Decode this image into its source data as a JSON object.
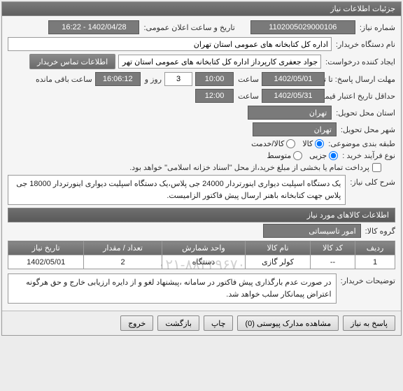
{
  "panel": {
    "title": "جزئیات اطلاعات نیاز"
  },
  "fields": {
    "need_no_label": "شماره نیاز:",
    "need_no": "1102005029000106",
    "announce_label": "تاریخ و ساعت اعلان عمومی:",
    "announce_value": "1402/04/28 - 16:22",
    "buyer_org_label": "نام دستگاه خریدار:",
    "buyer_org": "اداره کل کتابخانه های عمومی استان تهران",
    "creator_label": "ایجاد کننده درخواست:",
    "creator": "جواد جعفری کارپرداز اداره کل کتابخانه های عمومی استان تهران",
    "contact_btn": "اطلاعات تماس خریدار",
    "deadline_label": "مهلت ارسال پاسخ: تا تاریخ:",
    "deadline_date": "1402/05/01",
    "deadline_time_label": "ساعت",
    "deadline_time": "10:00",
    "remaining_prefix": "",
    "remaining_days": "3",
    "remaining_days_label": "روز و",
    "remaining_time": "16:06:12",
    "remaining_suffix": "ساعت باقی مانده",
    "validity_label": "حداقل تاریخ اعتبار قیمت: تا تاریخ:",
    "validity_date": "1402/05/31",
    "validity_time_label": "ساعت",
    "validity_time": "12:00",
    "city_label": "استان محل تحویل:",
    "city": "تهران",
    "delivery_city_label": "شهر محل تحویل:",
    "delivery_city": "تهران",
    "category_label": "طبقه بندی موضوعی:",
    "cat_goods": "کالا",
    "cat_service": "کالا/خدمت",
    "process_label": "نوع فرآیند خرید :",
    "proc_low": "جزیی",
    "proc_mid": "متوسط",
    "payment_check_label": "پرداخت تمام یا بخشی از مبلغ خرید،از محل \"اسناد خزانه اسلامی\" خواهد بود.",
    "summary_label": "شرح کلی نیاز:",
    "summary_text": "یک دستگاه اسپلیت دیواری اینورتردار 24000 جی پلاس،یک دستگاه اسپلیت دیواری اینورتردار 18000 جی پلاس جهت کتابخانه باهنر  ارسال پیش فاکتور الزامیست.",
    "items_bar": "اطلاعات کالاهای مورد نیاز",
    "group_label": "گروه کالا:",
    "group_value": "امور تاسیساتی",
    "buyer_note_label": "توضیحات خریدار:",
    "buyer_note": "در صورت عدم بارگذاری پیش فاکتور در سامانه ،پیشنهاد لغو و از دایره ارزیابی خارج و حق هرگونه اعتراض پیمانکار سلب خواهد شد."
  },
  "table": {
    "headers": [
      "ردیف",
      "کد کالا",
      "نام کالا",
      "واحد شمارش",
      "تعداد / مقدار",
      "تاریخ نیاز"
    ],
    "rows": [
      [
        "1",
        "--",
        "کولر گازی",
        "دستگاه",
        "2",
        "1402/05/01"
      ]
    ]
  },
  "watermark_phone": "۰۲۱-۸۸۳۴۹۶۷۰",
  "footer": {
    "respond": "پاسخ به نیاز",
    "attachments": "مشاهده مدارک پیوستی (0)",
    "print": "چاپ",
    "back": "بازگشت",
    "exit": "خروج"
  }
}
